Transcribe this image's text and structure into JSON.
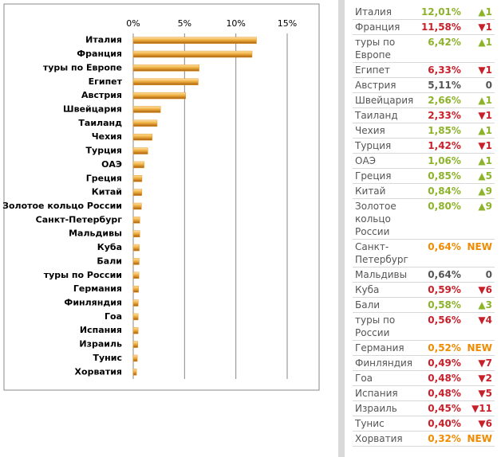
{
  "chart_data": {
    "type": "hbar",
    "categories": [
      "Италия",
      "Франция",
      "туры по Европе",
      "Египет",
      "Австрия",
      "Швейцария",
      "Таиланд",
      "Чехия",
      "Турция",
      "ОАЭ",
      "Греция",
      "Китай",
      "Золотое кольцо России",
      "Санкт-Петербург",
      "Мальдивы",
      "Куба",
      "Бали",
      "туры по России",
      "Германия",
      "Финляндия",
      "Гоа",
      "Испания",
      "Израиль",
      "Тунис",
      "Хорватия"
    ],
    "values": [
      12.01,
      11.58,
      6.42,
      6.33,
      5.11,
      2.66,
      2.33,
      1.85,
      1.42,
      1.06,
      0.85,
      0.84,
      0.8,
      0.64,
      0.64,
      0.59,
      0.58,
      0.56,
      0.52,
      0.49,
      0.48,
      0.48,
      0.45,
      0.4,
      0.32
    ],
    "color": "#e89a2c",
    "xlim": [
      0,
      15
    ],
    "xticks": [
      {
        "value": 0,
        "label": "0%"
      },
      {
        "value": 5,
        "label": "5%"
      },
      {
        "value": 10,
        "label": "10%"
      },
      {
        "value": 15,
        "label": "15%"
      }
    ],
    "grid": true
  },
  "table": {
    "rows": [
      {
        "name": "Италия",
        "value": "12,01%",
        "change": "▲1",
        "color": "#8db32a"
      },
      {
        "name": "Франция",
        "value": "11,58%",
        "change": "▼1",
        "color": "#c8202a"
      },
      {
        "name": "туры по Европе",
        "value": "6,42%",
        "change": "▲1",
        "color": "#8db32a"
      },
      {
        "name": "Египет",
        "value": "6,33%",
        "change": "▼1",
        "color": "#c8202a"
      },
      {
        "name": "Австрия",
        "value": "5,11%",
        "change": "0",
        "color": "#555555"
      },
      {
        "name": "Швейцария",
        "value": "2,66%",
        "change": "▲1",
        "color": "#8db32a"
      },
      {
        "name": "Таиланд",
        "value": "2,33%",
        "change": "▼1",
        "color": "#c8202a"
      },
      {
        "name": "Чехия",
        "value": "1,85%",
        "change": "▲1",
        "color": "#8db32a"
      },
      {
        "name": "Турция",
        "value": "1,42%",
        "change": "▼1",
        "color": "#c8202a"
      },
      {
        "name": "ОАЭ",
        "value": "1,06%",
        "change": "▲1",
        "color": "#8db32a"
      },
      {
        "name": "Греция",
        "value": "0,85%",
        "change": "▲5",
        "color": "#8db32a"
      },
      {
        "name": "Китай",
        "value": "0,84%",
        "change": "▲9",
        "color": "#8db32a"
      },
      {
        "name": "Золотое кольцо России",
        "value": "0,80%",
        "change": "▲9",
        "color": "#8db32a"
      },
      {
        "name": "Санкт-Петербург",
        "value": "0,64%",
        "change": "NEW",
        "color": "#f08a00"
      },
      {
        "name": "Мальдивы",
        "value": "0,64%",
        "change": "0",
        "color": "#555555"
      },
      {
        "name": "Куба",
        "value": "0,59%",
        "change": "▼6",
        "color": "#c8202a"
      },
      {
        "name": "Бали",
        "value": "0,58%",
        "change": "▲3",
        "color": "#8db32a"
      },
      {
        "name": "туры по России",
        "value": "0,56%",
        "change": "▼4",
        "color": "#c8202a"
      },
      {
        "name": "Германия",
        "value": "0,52%",
        "change": "NEW",
        "color": "#f08a00"
      },
      {
        "name": "Финляндия",
        "value": "0,49%",
        "change": "▼7",
        "color": "#c8202a"
      },
      {
        "name": "Гоа",
        "value": "0,48%",
        "change": "▼2",
        "color": "#c8202a"
      },
      {
        "name": "Испания",
        "value": "0,48%",
        "change": "▼5",
        "color": "#c8202a"
      },
      {
        "name": "Израиль",
        "value": "0,45%",
        "change": "▼11",
        "color": "#c8202a"
      },
      {
        "name": "Тунис",
        "value": "0,40%",
        "change": "▼6",
        "color": "#c8202a"
      },
      {
        "name": "Хорватия",
        "value": "0,32%",
        "change": "NEW",
        "color": "#f08a00"
      }
    ]
  }
}
